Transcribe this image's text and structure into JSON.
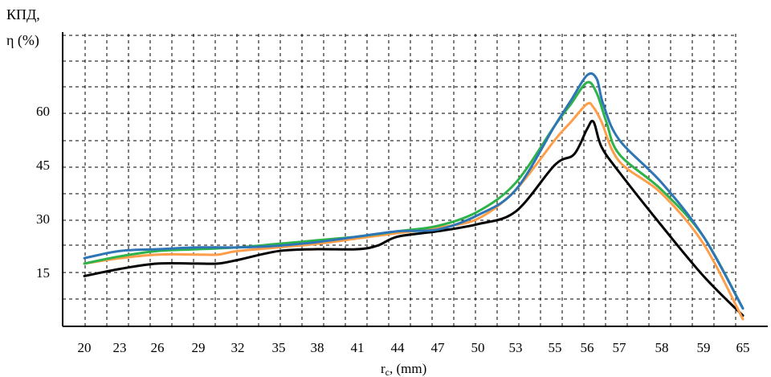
{
  "chart_data": {
    "type": "line",
    "ylabel_line1": "КПД,",
    "ylabel_line2": "η (%)",
    "xlabel_main": "r",
    "xlabel_sub": "c",
    "xlabel_rest": ", (mm)",
    "x_ticks": [
      "20",
      "23",
      "26",
      "29",
      "32",
      "35",
      "38",
      "41",
      "44",
      "47",
      "50",
      "53",
      "55",
      "56",
      "57",
      "58",
      "59",
      "65"
    ],
    "y_ticks": [
      15,
      30,
      45,
      60
    ],
    "ylim": [
      0,
      82
    ],
    "grid": true,
    "series": [
      {
        "color": "#000000",
        "values": [
          [
            20,
            14
          ],
          [
            23,
            16
          ],
          [
            26,
            17.5
          ],
          [
            29,
            17.5
          ],
          [
            30.5,
            17.5
          ],
          [
            32,
            18.5
          ],
          [
            35,
            21
          ],
          [
            38,
            21.5
          ],
          [
            41,
            21.5
          ],
          [
            42.5,
            22.5
          ],
          [
            44,
            25
          ],
          [
            47,
            26.5
          ],
          [
            50,
            28.5
          ],
          [
            53,
            32
          ],
          [
            55,
            45
          ],
          [
            55.6,
            48
          ],
          [
            56,
            55
          ],
          [
            56.2,
            57
          ],
          [
            56.45,
            50
          ],
          [
            57,
            43
          ],
          [
            58,
            28
          ],
          [
            59,
            14
          ],
          [
            65,
            3
          ]
        ]
      },
      {
        "color": "#ff9e4a",
        "values": [
          [
            20,
            17.5
          ],
          [
            23,
            19
          ],
          [
            26,
            20
          ],
          [
            29,
            20
          ],
          [
            30.5,
            20
          ],
          [
            32,
            21
          ],
          [
            35,
            22
          ],
          [
            38,
            23
          ],
          [
            41,
            24.5
          ],
          [
            44,
            26
          ],
          [
            47,
            27.5
          ],
          [
            50,
            30
          ],
          [
            53,
            38
          ],
          [
            55,
            52
          ],
          [
            55.5,
            57
          ],
          [
            56,
            62
          ],
          [
            56.2,
            61
          ],
          [
            56.45,
            57
          ],
          [
            57,
            46
          ],
          [
            58,
            37
          ],
          [
            59,
            23
          ],
          [
            65,
            2
          ]
        ]
      },
      {
        "color": "#2db34a",
        "values": [
          [
            20,
            17.5
          ],
          [
            23,
            19.5
          ],
          [
            26,
            21
          ],
          [
            29,
            21.5
          ],
          [
            32,
            22
          ],
          [
            35,
            23
          ],
          [
            38,
            24
          ],
          [
            41,
            25
          ],
          [
            44,
            26.5
          ],
          [
            47,
            28
          ],
          [
            50,
            32
          ],
          [
            53,
            40
          ],
          [
            55,
            56
          ],
          [
            55.5,
            62
          ],
          [
            56,
            68
          ],
          [
            56.3,
            65
          ],
          [
            56.6,
            57
          ],
          [
            57,
            48
          ],
          [
            58,
            38
          ],
          [
            59,
            25
          ],
          [
            65,
            5
          ]
        ]
      },
      {
        "color": "#2e75b6",
        "values": [
          [
            20,
            19
          ],
          [
            23,
            21
          ],
          [
            26,
            21.5
          ],
          [
            29,
            22
          ],
          [
            32,
            22
          ],
          [
            35,
            22.5
          ],
          [
            38,
            23.5
          ],
          [
            41,
            25
          ],
          [
            44,
            26.5
          ],
          [
            47,
            27
          ],
          [
            50,
            31
          ],
          [
            53,
            38
          ],
          [
            55,
            56
          ],
          [
            55.5,
            63
          ],
          [
            56,
            70
          ],
          [
            56.3,
            69
          ],
          [
            56.5,
            62
          ],
          [
            57,
            52
          ],
          [
            58,
            40
          ],
          [
            59,
            25
          ],
          [
            65,
            5
          ]
        ]
      }
    ]
  }
}
